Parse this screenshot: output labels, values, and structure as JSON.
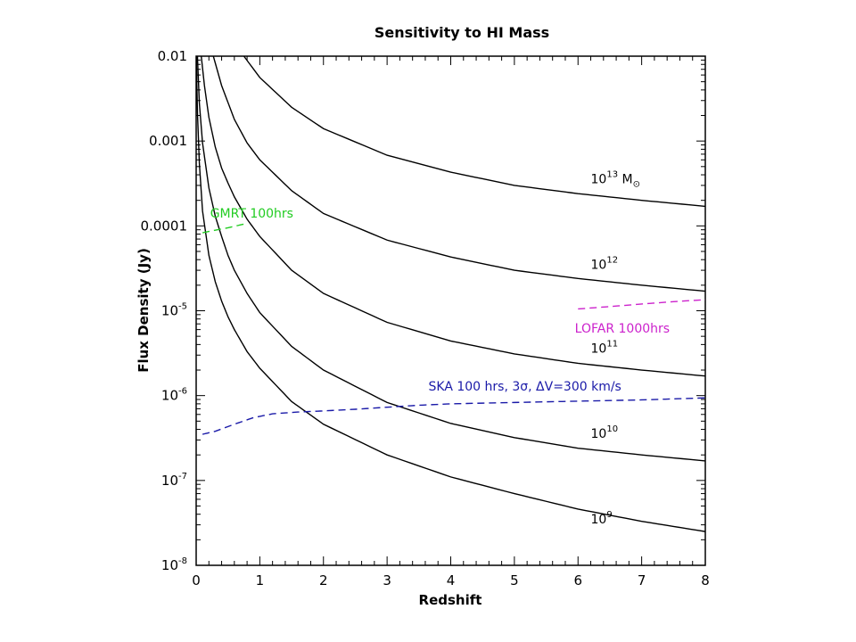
{
  "chart_data": {
    "type": "line",
    "title": "Sensitivity to HI Mass",
    "xlabel": "Redshift",
    "ylabel": "Flux Density (Jy)",
    "xlim": [
      0,
      8
    ],
    "ylim": [
      1e-08,
      0.01
    ],
    "yscale": "log",
    "grid": false,
    "legend": "none",
    "x_ticks": [
      0,
      1,
      2,
      3,
      4,
      5,
      6,
      7,
      8
    ],
    "x_tick_labels": [
      "0",
      "1",
      "2",
      "3",
      "4",
      "5",
      "6",
      "7",
      "8"
    ],
    "y_ticks": [
      {
        "value": 0.01,
        "base": "0.01",
        "exp": ""
      },
      {
        "value": 0.001,
        "base": "0.001",
        "exp": ""
      },
      {
        "value": 0.0001,
        "base": "0.0001",
        "exp": ""
      },
      {
        "value": 1e-05,
        "base": "10",
        "exp": "-5"
      },
      {
        "value": 1e-06,
        "base": "10",
        "exp": "-6"
      },
      {
        "value": 1e-07,
        "base": "10",
        "exp": "-7"
      },
      {
        "value": 1e-08,
        "base": "10",
        "exp": "-8"
      }
    ],
    "series": [
      {
        "label": "10",
        "label_exp": "13",
        "label_suffix": " M",
        "label_sub": "⊙",
        "label_at": [
          6.2,
          0.00032
        ],
        "color": "#000000",
        "style": "solid",
        "points": [
          [
            0.75,
            0.01
          ],
          [
            1.0,
            0.0056
          ],
          [
            1.5,
            0.0025
          ],
          [
            2,
            0.0014
          ],
          [
            3,
            0.00068
          ],
          [
            4,
            0.00043
          ],
          [
            5,
            0.0003
          ],
          [
            6,
            0.00024
          ],
          [
            7,
            0.0002
          ],
          [
            8,
            0.00017
          ]
        ]
      },
      {
        "label": "10",
        "label_exp": "12",
        "label_at": [
          6.2,
          3.1e-05
        ],
        "color": "#000000",
        "style": "solid",
        "points": [
          [
            0.27,
            0.01
          ],
          [
            0.4,
            0.0045
          ],
          [
            0.6,
            0.0018
          ],
          [
            0.8,
            0.00095
          ],
          [
            1.0,
            0.0006
          ],
          [
            1.5,
            0.00026
          ],
          [
            2,
            0.00014
          ],
          [
            3,
            6.8e-05
          ],
          [
            4,
            4.3e-05
          ],
          [
            5,
            3e-05
          ],
          [
            6,
            2.4e-05
          ],
          [
            7,
            2e-05
          ],
          [
            8,
            1.7e-05
          ]
        ]
      },
      {
        "label": "10",
        "label_exp": "11",
        "label_at": [
          6.2,
          3.2e-06
        ],
        "color": "#000000",
        "style": "solid",
        "points": [
          [
            0.08,
            0.01
          ],
          [
            0.13,
            0.0045
          ],
          [
            0.2,
            0.0019
          ],
          [
            0.3,
            0.00085
          ],
          [
            0.4,
            0.00048
          ],
          [
            0.5,
            0.00032
          ],
          [
            0.6,
            0.00022
          ],
          [
            0.8,
            0.00012
          ],
          [
            1.0,
            7.5e-05
          ],
          [
            1.5,
            3e-05
          ],
          [
            2,
            1.6e-05
          ],
          [
            3,
            7.3e-06
          ],
          [
            4,
            4.4e-06
          ],
          [
            5,
            3.1e-06
          ],
          [
            6,
            2.4e-06
          ],
          [
            7,
            2e-06
          ],
          [
            8,
            1.7e-06
          ]
        ]
      },
      {
        "label": "10",
        "label_exp": "10",
        "label_at": [
          6.2,
          3.2e-07
        ],
        "color": "#000000",
        "style": "solid",
        "points": [
          [
            0.02,
            0.01
          ],
          [
            0.05,
            0.0028
          ],
          [
            0.1,
            0.00095
          ],
          [
            0.2,
            0.00028
          ],
          [
            0.3,
            0.00013
          ],
          [
            0.4,
            7.5e-05
          ],
          [
            0.5,
            4.5e-05
          ],
          [
            0.6,
            3e-05
          ],
          [
            0.8,
            1.6e-05
          ],
          [
            1.0,
            9.5e-06
          ],
          [
            1.5,
            3.8e-06
          ],
          [
            2,
            2e-06
          ],
          [
            3,
            8.3e-07
          ],
          [
            4,
            4.7e-07
          ],
          [
            5,
            3.2e-07
          ],
          [
            6,
            2.4e-07
          ],
          [
            7,
            2e-07
          ],
          [
            8,
            1.7e-07
          ]
        ]
      },
      {
        "label": "10",
        "label_exp": "9",
        "label_at": [
          6.2,
          3.1e-08
        ],
        "color": "#000000",
        "style": "solid",
        "points": [
          [
            0.005,
            0.01
          ],
          [
            0.01,
            0.005
          ],
          [
            0.02,
            0.0022
          ],
          [
            0.05,
            0.00055
          ],
          [
            0.1,
            0.00015
          ],
          [
            0.2,
            4.5e-05
          ],
          [
            0.3,
            2.2e-05
          ],
          [
            0.4,
            1.3e-05
          ],
          [
            0.5,
            8.5e-06
          ],
          [
            0.6,
            6e-06
          ],
          [
            0.8,
            3.3e-06
          ],
          [
            1.0,
            2.1e-06
          ],
          [
            1.5,
            8.5e-07
          ],
          [
            2,
            4.6e-07
          ],
          [
            3,
            2e-07
          ],
          [
            4,
            1.1e-07
          ],
          [
            5,
            7e-08
          ],
          [
            6,
            4.6e-08
          ],
          [
            7,
            3.3e-08
          ],
          [
            8,
            2.5e-08
          ]
        ]
      },
      {
        "label": "GMRT 100hrs",
        "label_at": [
          0.22,
          0.000125
        ],
        "color": "#22cc22",
        "style": "dashed",
        "points": [
          [
            0.1,
            8.3e-05
          ],
          [
            0.3,
            8.9e-05
          ],
          [
            0.5,
            9.5e-05
          ],
          [
            0.75,
            0.000105
          ]
        ]
      },
      {
        "label": "LOFAR 1000hrs",
        "label_at": [
          5.95,
          5.5e-06
        ],
        "color": "#cc22cc",
        "style": "dashed",
        "points": [
          [
            6.0,
            1.05e-05
          ],
          [
            6.5,
            1.12e-05
          ],
          [
            7,
            1.2e-05
          ],
          [
            7.5,
            1.28e-05
          ],
          [
            8,
            1.35e-05
          ]
        ]
      },
      {
        "label": "SKA 100 hrs, 3σ, ΔV=300 km/s",
        "label_at": [
          3.65,
          1.15e-06
        ],
        "color": "#1a1aa8",
        "style": "dashed",
        "points": [
          [
            0.1,
            3.5e-07
          ],
          [
            0.3,
            3.8e-07
          ],
          [
            0.6,
            4.6e-07
          ],
          [
            0.9,
            5.5e-07
          ],
          [
            1.2,
            6.1e-07
          ],
          [
            1.6,
            6.4e-07
          ],
          [
            2,
            6.6e-07
          ],
          [
            2.5,
            6.9e-07
          ],
          [
            3,
            7.3e-07
          ],
          [
            3.5,
            7.7e-07
          ],
          [
            4,
            8e-07
          ],
          [
            5,
            8.3e-07
          ],
          [
            6,
            8.6e-07
          ],
          [
            7,
            8.9e-07
          ],
          [
            8,
            9.4e-07
          ]
        ]
      }
    ]
  }
}
